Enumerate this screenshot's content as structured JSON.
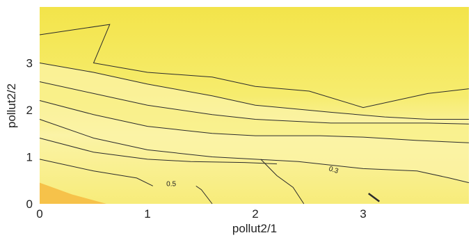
{
  "chart_data": {
    "type": "contour",
    "xlabel": "pollut2/1",
    "ylabel": "pollut2/2",
    "x_ticks": [
      "0",
      "1",
      "2",
      "3"
    ],
    "y_ticks": [
      "0",
      "1",
      "2",
      "3"
    ],
    "xlim": [
      0,
      4
    ],
    "ylim": [
      0,
      4.2
    ],
    "grid": false,
    "colors": {
      "light": "#fbf3a6",
      "mid": "#f7ee7e",
      "strong": "#f4e64e",
      "corner": "#f6c24a",
      "line": "#2b2b2b"
    },
    "contour_labels": [
      {
        "text": "0.5",
        "x": 1.22,
        "y": 0.38
      },
      {
        "text": "0.3",
        "x": 2.72,
        "y": 0.68
      }
    ],
    "contours": [
      [
        [
          0,
          3.6
        ],
        [
          0.65,
          3.82
        ],
        [
          0.5,
          3.0
        ],
        [
          1.0,
          2.8
        ],
        [
          1.6,
          2.7
        ],
        [
          2.0,
          2.5
        ],
        [
          2.5,
          2.4
        ],
        [
          3.0,
          2.05
        ],
        [
          3.6,
          2.35
        ],
        [
          4.0,
          2.45
        ]
      ],
      [
        [
          0,
          3.0
        ],
        [
          0.5,
          2.8
        ],
        [
          1.0,
          2.55
        ],
        [
          1.6,
          2.3
        ],
        [
          2.0,
          2.1
        ],
        [
          2.7,
          1.95
        ],
        [
          3.2,
          1.85
        ],
        [
          3.6,
          1.8
        ],
        [
          4.0,
          1.8
        ]
      ],
      [
        [
          0,
          2.6
        ],
        [
          0.5,
          2.35
        ],
        [
          1.0,
          2.1
        ],
        [
          1.6,
          1.9
        ],
        [
          2.0,
          1.8
        ],
        [
          2.7,
          1.72
        ],
        [
          3.2,
          1.72
        ],
        [
          3.6,
          1.72
        ],
        [
          4.0,
          1.7
        ]
      ],
      [
        [
          0,
          2.2
        ],
        [
          0.5,
          1.9
        ],
        [
          1.0,
          1.65
        ],
        [
          1.6,
          1.5
        ],
        [
          2.0,
          1.45
        ],
        [
          2.6,
          1.45
        ],
        [
          3.0,
          1.42
        ],
        [
          3.5,
          1.35
        ],
        [
          4.0,
          1.3
        ]
      ],
      [
        [
          0,
          1.8
        ],
        [
          0.5,
          1.4
        ],
        [
          1.0,
          1.15
        ],
        [
          1.6,
          1.0
        ],
        [
          2.0,
          0.95
        ],
        [
          2.4,
          0.9
        ],
        [
          3.0,
          0.75
        ],
        [
          3.5,
          0.7
        ],
        [
          3.8,
          0.55
        ],
        [
          4.0,
          0.45
        ]
      ],
      [
        [
          0,
          1.4
        ],
        [
          0.5,
          1.1
        ],
        [
          1.0,
          0.95
        ],
        [
          1.4,
          0.9
        ],
        [
          1.9,
          0.88
        ],
        [
          2.2,
          0.85
        ]
      ],
      [
        [
          0,
          0.95
        ],
        [
          0.5,
          0.7
        ],
        [
          0.9,
          0.55
        ],
        [
          1.05,
          0.38
        ]
      ],
      [
        [
          1.45,
          0.38
        ],
        [
          1.5,
          0.3
        ],
        [
          1.6,
          0.0
        ]
      ],
      [
        [
          2.05,
          0.95
        ],
        [
          2.2,
          0.6
        ],
        [
          2.35,
          0.35
        ],
        [
          2.45,
          0.0
        ]
      ],
      [
        [
          3.05,
          0.22
        ],
        [
          3.15,
          0.05
        ]
      ]
    ],
    "corner_region": [
      [
        0,
        0
      ],
      [
        0,
        0.45
      ],
      [
        0.3,
        0.2
      ],
      [
        0.62,
        0
      ]
    ]
  }
}
